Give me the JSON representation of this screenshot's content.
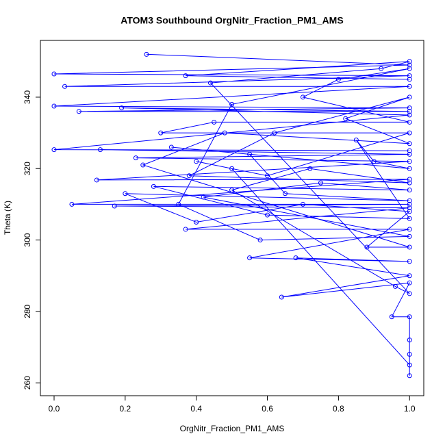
{
  "chart_data": {
    "type": "line",
    "title": "ATOM3 Southbound OrgNitr_Fraction_PM1_AMS",
    "x_label": "OrgNitr_Fraction_PM1_AMS",
    "y_label": "Theta (K)",
    "color": "#0000ff",
    "x": [
      0.26,
      1,
      0.0,
      1,
      0.03,
      1,
      0.0,
      1,
      0.07,
      1,
      0.19,
      1,
      0.0,
      1,
      0.13,
      1,
      0.23,
      1,
      0.12,
      1,
      0.05,
      1,
      0.17,
      1,
      0.37,
      1,
      0.55,
      1,
      0.68,
      1,
      0.64,
      1,
      0.95,
      1,
      1,
      1,
      1,
      1,
      0.5,
      0.4,
      0.6,
      1,
      0.3,
      0.45,
      1,
      0.7,
      0.8,
      1,
      0.5,
      0.35,
      0.58,
      1,
      0.42,
      0.75,
      1,
      0.28,
      0.6,
      1,
      0.85,
      0.9,
      1,
      0.33,
      0.55,
      0.65,
      1,
      0.2,
      0.4,
      0.7,
      1,
      0.88,
      1,
      0.25,
      0.48,
      1,
      0.82,
      1,
      0.62,
      0.38,
      1,
      0.72,
      0.5,
      0.96,
      1,
      0.44,
      0.92,
      1,
      0.37,
      1
    ],
    "values": [
      352,
      349,
      346.5,
      346,
      343,
      343,
      337.5,
      337,
      336,
      336,
      337,
      335,
      325.3,
      325,
      325.3,
      324,
      323,
      322,
      316.8,
      317,
      310,
      310,
      309.5,
      309,
      303,
      303,
      295,
      294,
      295,
      290,
      284,
      288,
      278.5,
      278.5,
      272,
      268,
      262,
      265,
      320,
      322,
      318,
      330,
      330,
      333,
      333,
      340,
      345,
      348,
      338,
      310,
      300,
      301,
      312,
      316,
      314,
      315,
      307,
      306,
      328,
      322,
      320,
      326,
      324,
      313,
      311,
      313,
      305,
      310,
      308,
      298,
      298,
      321,
      330,
      327,
      334,
      340,
      330,
      318,
      316,
      320,
      314,
      287,
      285,
      344,
      348,
      350,
      346,
      345
    ],
    "xlim": [
      -0.0385,
      1.04
    ],
    "ylim": [
      256.4,
      355.9
    ],
    "xticks": [
      {
        "value": 0,
        "label": "0.0"
      },
      0.2,
      0.4,
      0.6,
      0.8,
      {
        "value": 1,
        "label": "1.0"
      }
    ],
    "yticks": [
      260,
      280,
      300,
      320,
      340
    ]
  }
}
